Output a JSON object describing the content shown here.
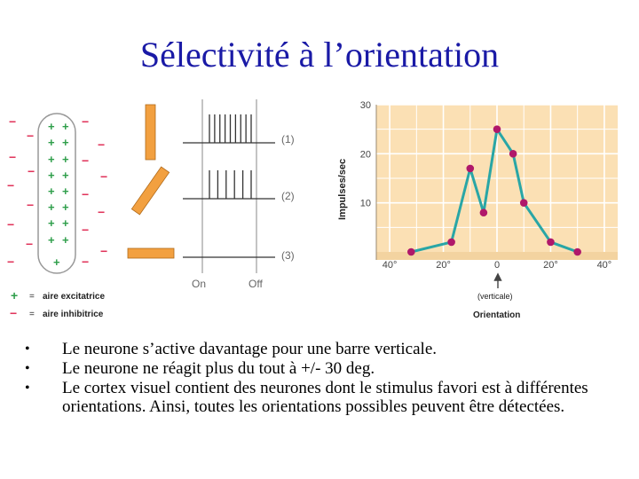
{
  "title": "Sélectivité à l’orientation",
  "receptive_field": {
    "plus_sign": "+",
    "minus_sign": "−",
    "colors": {
      "plus": "#2e9e4a",
      "minus": "#e0335a"
    },
    "legend": [
      {
        "symbol": "+",
        "label": "aire excitatrice"
      },
      {
        "symbol": "−",
        "label": "aire inhibitrice"
      }
    ],
    "legend_separator": "="
  },
  "stimuli": {
    "bar_color": "#f2a040",
    "conditions": [
      {
        "label": "(1)",
        "orientation": "vertical",
        "spike_count": 9
      },
      {
        "label": "(2)",
        "orientation": "oblique",
        "spike_count": 6
      },
      {
        "label": "(3)",
        "orientation": "horizontal",
        "spike_count": 0
      }
    ],
    "on_label": "On",
    "off_label": "Off"
  },
  "chart_data": {
    "type": "line",
    "title": "",
    "ylabel": "Impulses/sec",
    "xlabel": "Orientation",
    "x_annotation": "(verticale)",
    "xlim": [
      -45,
      45
    ],
    "ylim": [
      0,
      30
    ],
    "yticks": [
      10,
      20,
      30
    ],
    "ytick_labels": [
      "10",
      "20",
      "30"
    ],
    "xticks": [
      -40,
      -20,
      0,
      20,
      40
    ],
    "xtick_labels": [
      "40°",
      "20°",
      "0",
      "20°",
      "40°"
    ],
    "background": "#fbe0b4",
    "grid": true,
    "line_color": "#29a6a6",
    "marker_color": "#b0186a",
    "series": [
      {
        "x": [
          -32,
          -17,
          -10,
          -5,
          0,
          6,
          10,
          20,
          30
        ],
        "y": [
          0,
          2,
          17,
          8,
          25,
          20,
          10,
          2,
          0
        ]
      }
    ]
  },
  "bullets": [
    "Le neurone s’active davantage pour une barre verticale.",
    "Le neurone ne réagit plus du tout à +/- 30 deg.",
    "Le cortex visuel contient des neurones dont le stimulus favori est à différentes orientations. Ainsi, toutes les orientations possibles peuvent être détectées."
  ],
  "bullet_symbol": "•"
}
